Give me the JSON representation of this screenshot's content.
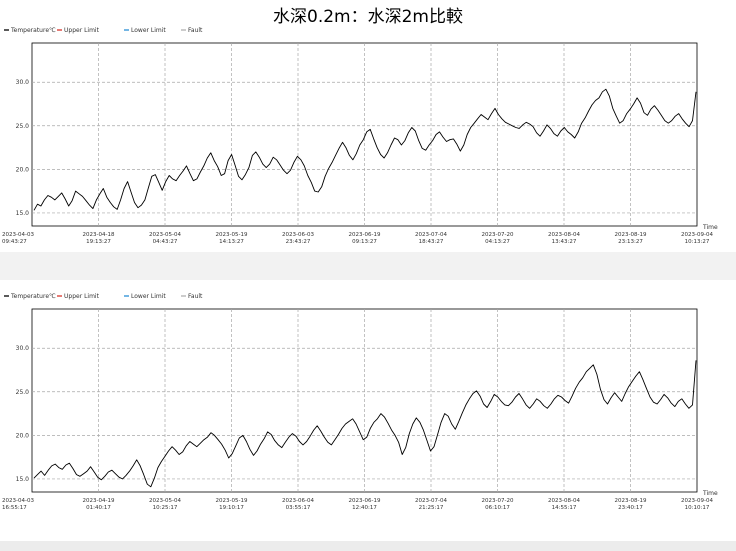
{
  "title": "水深0.2m：水深2m比較",
  "colors": {
    "temperature": "#000000",
    "upper_limit": "#d9342b",
    "lower_limit": "#2a8fd6",
    "fault": "#b0b0b0",
    "grid": "#a8a8a8"
  },
  "chart_data": [
    {
      "type": "line",
      "legend": [
        "Temperature℃",
        "Upper Limit",
        "Lower Limit",
        "Fault"
      ],
      "legend_placement": "top-left",
      "xlabel": "Time",
      "ylabel": "",
      "ylim": [
        13.5,
        34.5
      ],
      "yticks": [
        15.0,
        20.0,
        25.0,
        30.0
      ],
      "ytick_labels": [
        "15.0",
        "20.0",
        "25.0",
        "30.0"
      ],
      "grid": true,
      "xticks": [
        [
          "2023-04-03",
          "09:43:27"
        ],
        [
          "2023-04-18",
          "19:13:27"
        ],
        [
          "2023-05-04",
          "04:43:27"
        ],
        [
          "2023-05-19",
          "14:13:27"
        ],
        [
          "2023-06-03",
          "23:43:27"
        ],
        [
          "2023-06-19",
          "09:13:27"
        ],
        [
          "2023-07-04",
          "18:43:27"
        ],
        [
          "2023-07-20",
          "04:13:27"
        ],
        [
          "2023-08-04",
          "13:43:27"
        ],
        [
          "2023-08-19",
          "23:13:27"
        ],
        [
          "2023-09-04",
          "10:13:27"
        ]
      ],
      "series": [
        {
          "name": "Temperature℃",
          "x_start": "2023-04-03",
          "x_step_days": 1,
          "values": [
            15.3,
            16.0,
            15.8,
            16.5,
            17.0,
            16.8,
            16.5,
            16.9,
            17.3,
            16.6,
            15.8,
            16.4,
            17.5,
            17.2,
            16.9,
            16.4,
            15.9,
            15.5,
            16.5,
            17.2,
            17.8,
            16.8,
            16.2,
            15.7,
            15.4,
            16.5,
            17.8,
            18.6,
            17.4,
            16.2,
            15.6,
            15.9,
            16.5,
            17.9,
            19.2,
            19.4,
            18.5,
            17.6,
            18.6,
            19.3,
            18.9,
            18.7,
            19.3,
            19.8,
            20.4,
            19.5,
            18.7,
            18.9,
            19.7,
            20.4,
            21.3,
            21.9,
            21.0,
            20.3,
            19.3,
            19.5,
            21.0,
            21.7,
            20.5,
            19.2,
            18.8,
            19.4,
            20.2,
            21.6,
            22.0,
            21.4,
            20.6,
            20.2,
            20.6,
            21.4,
            21.1,
            20.5,
            19.9,
            19.5,
            19.9,
            20.8,
            21.5,
            21.1,
            20.4,
            19.3,
            18.5,
            17.5,
            17.4,
            18.0,
            19.2,
            20.1,
            20.8,
            21.6,
            22.4,
            23.1,
            22.5,
            21.6,
            21.1,
            21.8,
            22.8,
            23.4,
            24.3,
            24.6,
            23.5,
            22.5,
            21.7,
            21.3,
            21.9,
            22.8,
            23.6,
            23.4,
            22.8,
            23.3,
            24.2,
            24.8,
            24.4,
            23.3,
            22.4,
            22.2,
            22.8,
            23.3,
            24.0,
            24.3,
            23.7,
            23.2,
            23.4,
            23.5,
            22.9,
            22.1,
            22.8,
            24.0,
            24.8,
            25.3,
            25.8,
            26.3,
            26.0,
            25.7,
            26.4,
            27.0,
            26.3,
            25.8,
            25.4,
            25.2,
            25.0,
            24.8,
            24.7,
            25.1,
            25.4,
            25.2,
            24.9,
            24.2,
            23.8,
            24.4,
            25.1,
            24.7,
            24.1,
            23.8,
            24.4,
            24.8,
            24.3,
            24.0,
            23.6,
            24.3,
            25.3,
            25.9,
            26.7,
            27.4,
            27.9,
            28.2,
            28.9,
            29.2,
            28.4,
            27.0,
            26.1,
            25.3,
            25.6,
            26.4,
            26.9,
            27.5,
            28.2,
            27.6,
            26.5,
            26.2,
            26.9,
            27.3,
            26.8,
            26.2,
            25.6,
            25.3,
            25.6,
            26.1,
            26.4,
            25.8,
            25.3,
            24.9,
            25.6,
            28.9
          ]
        },
        {
          "name": "Upper Limit",
          "values": []
        },
        {
          "name": "Lower Limit",
          "values": []
        },
        {
          "name": "Fault",
          "values": []
        }
      ]
    },
    {
      "type": "line",
      "legend": [
        "Temperature℃",
        "Upper Limit",
        "Lower Limit",
        "Fault"
      ],
      "legend_placement": "top-left",
      "xlabel": "Time",
      "ylabel": "",
      "ylim": [
        13.5,
        34.5
      ],
      "yticks": [
        15.0,
        20.0,
        25.0,
        30.0
      ],
      "ytick_labels": [
        "15.0",
        "20.0",
        "25.0",
        "30.0"
      ],
      "grid": true,
      "xticks": [
        [
          "2023-04-03",
          "16:55:17"
        ],
        [
          "2023-04-19",
          "01:40:17"
        ],
        [
          "2023-05-04",
          "10:25:17"
        ],
        [
          "2023-05-19",
          "19:10:17"
        ],
        [
          "2023-06-04",
          "03:55:17"
        ],
        [
          "2023-06-19",
          "12:40:17"
        ],
        [
          "2023-07-04",
          "21:25:17"
        ],
        [
          "2023-07-20",
          "06:10:17"
        ],
        [
          "2023-08-04",
          "14:55:17"
        ],
        [
          "2023-08-19",
          "23:40:17"
        ],
        [
          "2023-09-04",
          "10:10:17"
        ]
      ],
      "series": [
        {
          "name": "Temperature℃",
          "x_start": "2023-04-03",
          "x_step_days": 1,
          "values": [
            15.1,
            15.5,
            15.9,
            15.4,
            16.0,
            16.5,
            16.7,
            16.3,
            16.1,
            16.6,
            16.8,
            16.2,
            15.5,
            15.3,
            15.6,
            15.9,
            16.4,
            15.8,
            15.2,
            14.9,
            15.3,
            15.8,
            16.0,
            15.6,
            15.2,
            15.0,
            15.4,
            15.9,
            16.5,
            17.2,
            16.5,
            15.5,
            14.4,
            14.1,
            15.1,
            16.3,
            17.0,
            17.6,
            18.2,
            18.7,
            18.3,
            17.8,
            18.1,
            18.8,
            19.3,
            19.0,
            18.7,
            19.1,
            19.5,
            19.8,
            20.3,
            20.0,
            19.5,
            19.0,
            18.3,
            17.4,
            17.9,
            18.8,
            19.7,
            20.0,
            19.3,
            18.4,
            17.7,
            18.2,
            19.0,
            19.6,
            20.4,
            20.1,
            19.4,
            18.9,
            18.6,
            19.2,
            19.8,
            20.2,
            19.9,
            19.3,
            18.9,
            19.3,
            19.9,
            20.6,
            21.1,
            20.5,
            19.8,
            19.2,
            18.9,
            19.5,
            20.1,
            20.8,
            21.3,
            21.6,
            21.9,
            21.3,
            20.4,
            19.5,
            19.8,
            20.8,
            21.5,
            21.9,
            22.5,
            22.1,
            21.4,
            20.6,
            20.0,
            19.2,
            17.8,
            18.6,
            20.2,
            21.3,
            22.0,
            21.5,
            20.6,
            19.4,
            18.2,
            18.7,
            20.1,
            21.5,
            22.5,
            22.2,
            21.3,
            20.7,
            21.6,
            22.6,
            23.5,
            24.2,
            24.8,
            25.1,
            24.5,
            23.6,
            23.2,
            23.9,
            24.7,
            24.4,
            23.9,
            23.5,
            23.4,
            23.8,
            24.4,
            24.8,
            24.2,
            23.5,
            23.1,
            23.6,
            24.2,
            23.9,
            23.4,
            23.1,
            23.6,
            24.2,
            24.6,
            24.4,
            24.0,
            23.7,
            24.5,
            25.4,
            26.1,
            26.6,
            27.3,
            27.7,
            28.1,
            27.0,
            25.3,
            24.1,
            23.6,
            24.3,
            24.9,
            24.4,
            23.9,
            24.8,
            25.6,
            26.2,
            26.8,
            27.3,
            26.4,
            25.4,
            24.4,
            23.8,
            23.6,
            24.1,
            24.7,
            24.3,
            23.7,
            23.3,
            23.9,
            24.2,
            23.6,
            23.1,
            23.5,
            28.6
          ]
        },
        {
          "name": "Upper Limit",
          "values": []
        },
        {
          "name": "Lower Limit",
          "values": []
        },
        {
          "name": "Fault",
          "values": []
        }
      ]
    }
  ]
}
